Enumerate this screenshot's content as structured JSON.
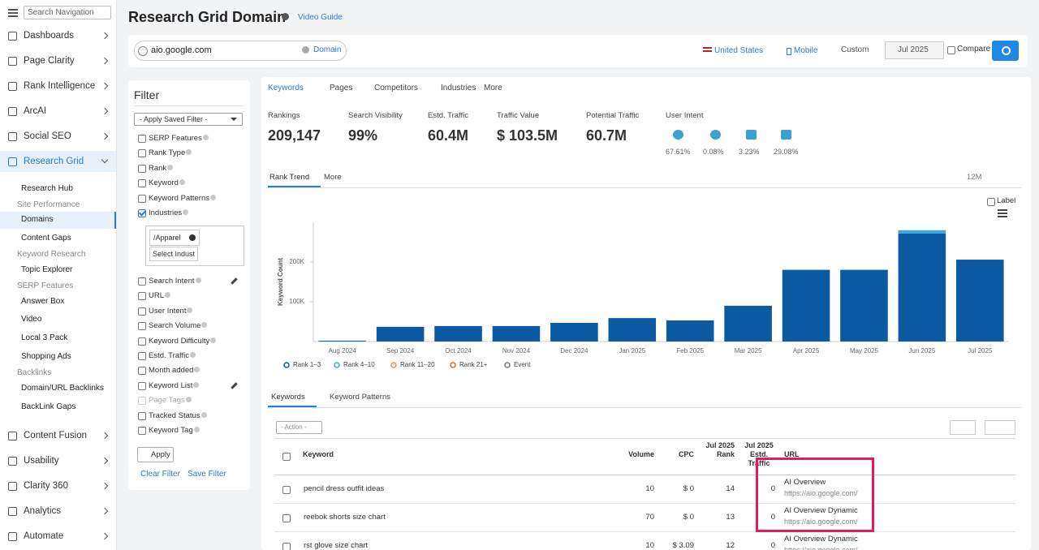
{
  "nav": {
    "search_placeholder": "Search Navigation",
    "main": [
      {
        "label": "Dashboards"
      },
      {
        "label": "Page Clarity"
      },
      {
        "label": "Rank Intelligence"
      },
      {
        "label": "ArcAI"
      },
      {
        "label": "Social SEO"
      },
      {
        "label": "Research Grid",
        "active": true
      }
    ],
    "sub": [
      {
        "label": "Research Hub"
      },
      {
        "label": "Site Performance",
        "group": true
      },
      {
        "label": "Domains",
        "active": true
      },
      {
        "label": "Content Gaps"
      },
      {
        "label": "Keyword Research",
        "group": true
      },
      {
        "label": "Topic Explorer"
      },
      {
        "label": "SERP Features",
        "group": true
      },
      {
        "label": "Answer Box"
      },
      {
        "label": "Video"
      },
      {
        "label": "Local 3 Pack"
      },
      {
        "label": "Shopping Ads"
      },
      {
        "label": "Backlinks",
        "group": true
      },
      {
        "label": "Domain/URL Backlinks"
      },
      {
        "label": "BackLink Gaps"
      }
    ],
    "bottom": [
      {
        "label": "Content Fusion"
      },
      {
        "label": "Usability"
      },
      {
        "label": "Clarity 360"
      },
      {
        "label": "Analytics"
      },
      {
        "label": "Automate"
      }
    ]
  },
  "header": {
    "title": "Research Grid Domain",
    "video_guide": "Video Guide"
  },
  "search": {
    "domain": "aio.google.com",
    "mode": "Domain",
    "country": "United States",
    "device": "Mobile",
    "range": "Custom",
    "date": "Jul 2025",
    "compare": "Compare"
  },
  "filter": {
    "title": "Filter",
    "saved_filter": "- Apply Saved Filter -",
    "items": [
      {
        "label": "SERP Features"
      },
      {
        "label": "Rank Type"
      },
      {
        "label": "Rank"
      },
      {
        "label": "Keyword"
      },
      {
        "label": "Keyword Patterns"
      },
      {
        "label": "Industries",
        "checked": true
      },
      {
        "label": "Search Intent",
        "edit": true
      },
      {
        "label": "URL"
      },
      {
        "label": "User Intent"
      },
      {
        "label": "Search Volume"
      },
      {
        "label": "Keyword Difficulty"
      },
      {
        "label": "Estd. Traffic"
      },
      {
        "label": "Month added"
      },
      {
        "label": "Keyword List",
        "edit": true
      },
      {
        "label": "Page Tags",
        "disabled": true
      },
      {
        "label": "Tracked Status"
      },
      {
        "label": "Keyword Tag"
      }
    ],
    "industry_chip": "/Apparel",
    "industry_input": "Select Indust",
    "apply": "Apply",
    "clear": "Clear Filter",
    "save": "Save Filter"
  },
  "tabs": [
    "Keywords",
    "Pages",
    "Competitors",
    "Industries",
    "More"
  ],
  "metrics": [
    {
      "label": "Rankings",
      "value": "209,147"
    },
    {
      "label": "Search Visibility",
      "value": "99%"
    },
    {
      "label": "Estd. Traffic",
      "value": "60.4M"
    },
    {
      "label": "Traffic Value",
      "value": "$ 103.5M"
    },
    {
      "label": "Potential Traffic",
      "value": "60.7M"
    }
  ],
  "user_intent": {
    "label": "User Intent",
    "values": [
      "67.61%",
      "0.08%",
      "3.23%",
      "29.08%"
    ]
  },
  "trend_tabs": {
    "active": "Rank Trend",
    "more": "More",
    "period": "12M",
    "label_toggle": "Label"
  },
  "chart_data": {
    "type": "bar",
    "stacked": true,
    "y_label": "Keyword Count",
    "categories": [
      "Aug 2024",
      "Sep 2024",
      "Oct 2024",
      "Nov 2024",
      "Dec 2024",
      "Jan 2025",
      "Feb 2025",
      "Mar 2025",
      "Apr 2025",
      "May 2025",
      "Jun 2025",
      "Jul 2025"
    ],
    "series": [
      {
        "name": "Rank 1–3",
        "color": "#0b5aa2",
        "values": [
          2000,
          37000,
          39000,
          39000,
          47000,
          59000,
          53000,
          90000,
          180000,
          180000,
          272000,
          206000
        ]
      },
      {
        "name": "Rank 4–10",
        "color": "#3fa9d6",
        "values": [
          0,
          0,
          0,
          0,
          0,
          0,
          0,
          0,
          1000,
          1000,
          8000,
          0
        ]
      },
      {
        "name": "Rank 11–20",
        "color": "#e8915a",
        "values": [
          0,
          0,
          0,
          0,
          0,
          0,
          0,
          0,
          0,
          0,
          0,
          0
        ]
      },
      {
        "name": "Rank 21+",
        "color": "#d9663a",
        "values": [
          0,
          0,
          0,
          0,
          0,
          0,
          0,
          0,
          0,
          0,
          0,
          0
        ]
      }
    ],
    "event_legend": "Event",
    "ylim": [
      0,
      300000
    ],
    "yticks": [
      {
        "value": 100000,
        "label": "100K"
      },
      {
        "value": 200000,
        "label": "200K"
      }
    ],
    "grid": false
  },
  "table_tabs": [
    "Keywords",
    "Keyword Patterns"
  ],
  "table": {
    "action": "- Action -",
    "columns": [
      "Keyword",
      "Volume",
      "CPC",
      "Jul 2025 Rank",
      "Jul 2025 Estd. Traffic",
      "URL"
    ],
    "rows": [
      [
        "pencil dress outfit ideas",
        "10",
        "$ 0",
        "14",
        "0",
        "AI Overview",
        "https://aio.google.com/"
      ],
      [
        "reebok shorts size chart",
        "70",
        "$ 0",
        "13",
        "0",
        "AI Overview Dynamic",
        "https://aio.google.com/"
      ],
      [
        "rst glove size chart",
        "10",
        "$ 3.09",
        "12",
        "0",
        "AI Overview Dynamic",
        "https://aio.google.com/"
      ]
    ]
  }
}
